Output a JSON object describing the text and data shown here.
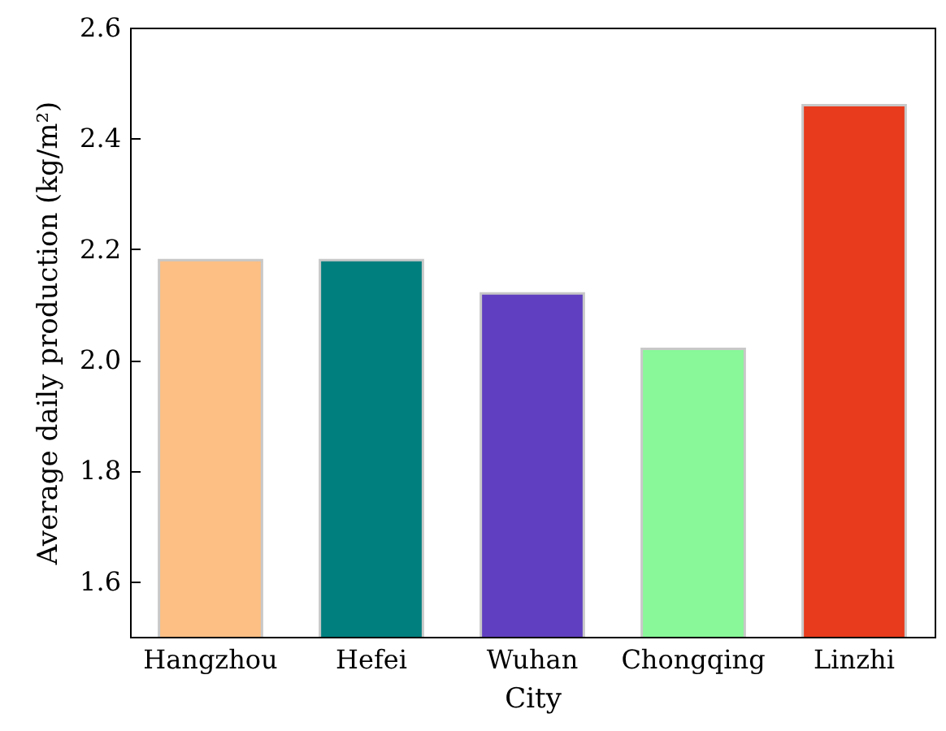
{
  "chart_data": {
    "type": "bar",
    "xlabel": "City",
    "ylabel": "Average daily production (kg/m²)",
    "categories": [
      "Hangzhou",
      "Hefei",
      "Wuhan",
      "Chongqing",
      "Linzhi"
    ],
    "values": [
      2.18,
      2.18,
      2.12,
      2.02,
      2.46
    ],
    "colors": [
      "#fdbf84",
      "#007f7f",
      "#6040c0",
      "#88f898",
      "#e83a1c"
    ],
    "ylim": [
      1.5,
      2.6
    ],
    "yticks": [
      {
        "value": 1.6,
        "label": "1.6"
      },
      {
        "value": 1.8,
        "label": "1.8"
      },
      {
        "value": 2,
        "label": "2.0"
      },
      {
        "value": 2.2,
        "label": "2.2"
      },
      {
        "value": 2.4,
        "label": "2.4"
      },
      {
        "value": 2.6,
        "label": "2.6"
      }
    ],
    "grid": false
  }
}
